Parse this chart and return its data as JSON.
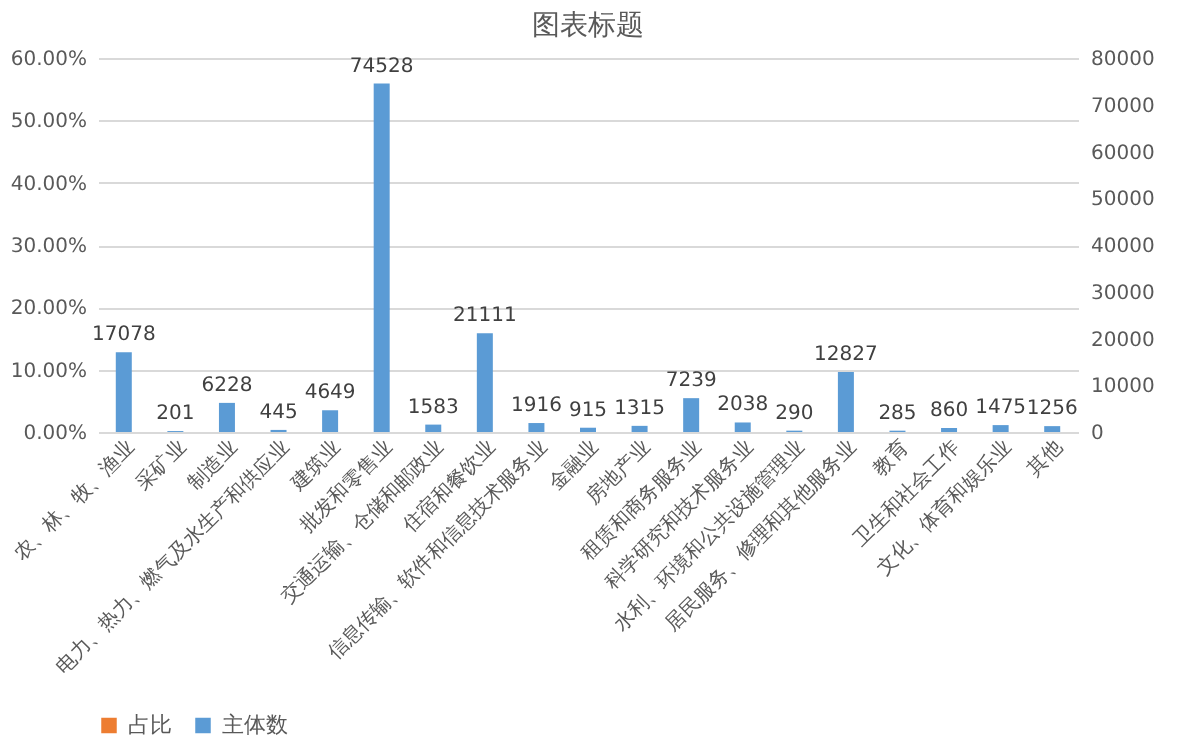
{
  "chart_data": {
    "type": "bar",
    "title": "图表标题",
    "categories": [
      "农、林、牧、渔业",
      "采矿业",
      "制造业",
      "电力、热力、燃气及水生产和供应业",
      "建筑业",
      "批发和零售业",
      "交通运输、仓储和邮政业",
      "住宿和餐饮业",
      "信息传输、软件和信息技术服务业",
      "金融业",
      "房地产业",
      "租赁和商务服务业",
      "科学研究和技术服务业",
      "水利、环境和公共设施管理业",
      "居民服务、修理和其他服务业",
      "教育",
      "卫生和社会工作",
      "文化、体育和娱乐业",
      "其他"
    ],
    "series": [
      {
        "name": "占比",
        "color": "#ed7d31",
        "values": [
          null,
          null,
          null,
          null,
          null,
          null,
          null,
          null,
          null,
          null,
          null,
          null,
          null,
          null,
          null,
          null,
          null,
          null,
          null
        ]
      },
      {
        "name": "主体数",
        "color": "#5b9bd5",
        "axis": "y2",
        "values": [
          17078,
          201,
          6228,
          445,
          4649,
          74528,
          1583,
          21111,
          1916,
          915,
          1315,
          7239,
          2038,
          290,
          12827,
          285,
          860,
          1475,
          1256
        ]
      }
    ],
    "ylim": [
      0,
      0.6
    ],
    "yticks": [
      {
        "value": 0,
        "label": "0.00%"
      },
      {
        "value": 0.1,
        "label": "10.00%"
      },
      {
        "value": 0.2,
        "label": "20.00%"
      },
      {
        "value": 0.3,
        "label": "30.00%"
      },
      {
        "value": 0.4,
        "label": "40.00%"
      },
      {
        "value": 0.5,
        "label": "50.00%"
      },
      {
        "value": 0.6,
        "label": "60.00%"
      }
    ],
    "y2lim": [
      0,
      80000
    ],
    "y2ticks": [
      0,
      10000,
      20000,
      30000,
      40000,
      50000,
      60000,
      70000,
      80000
    ],
    "data_labels": true,
    "grid": true,
    "legend": "bottom"
  }
}
